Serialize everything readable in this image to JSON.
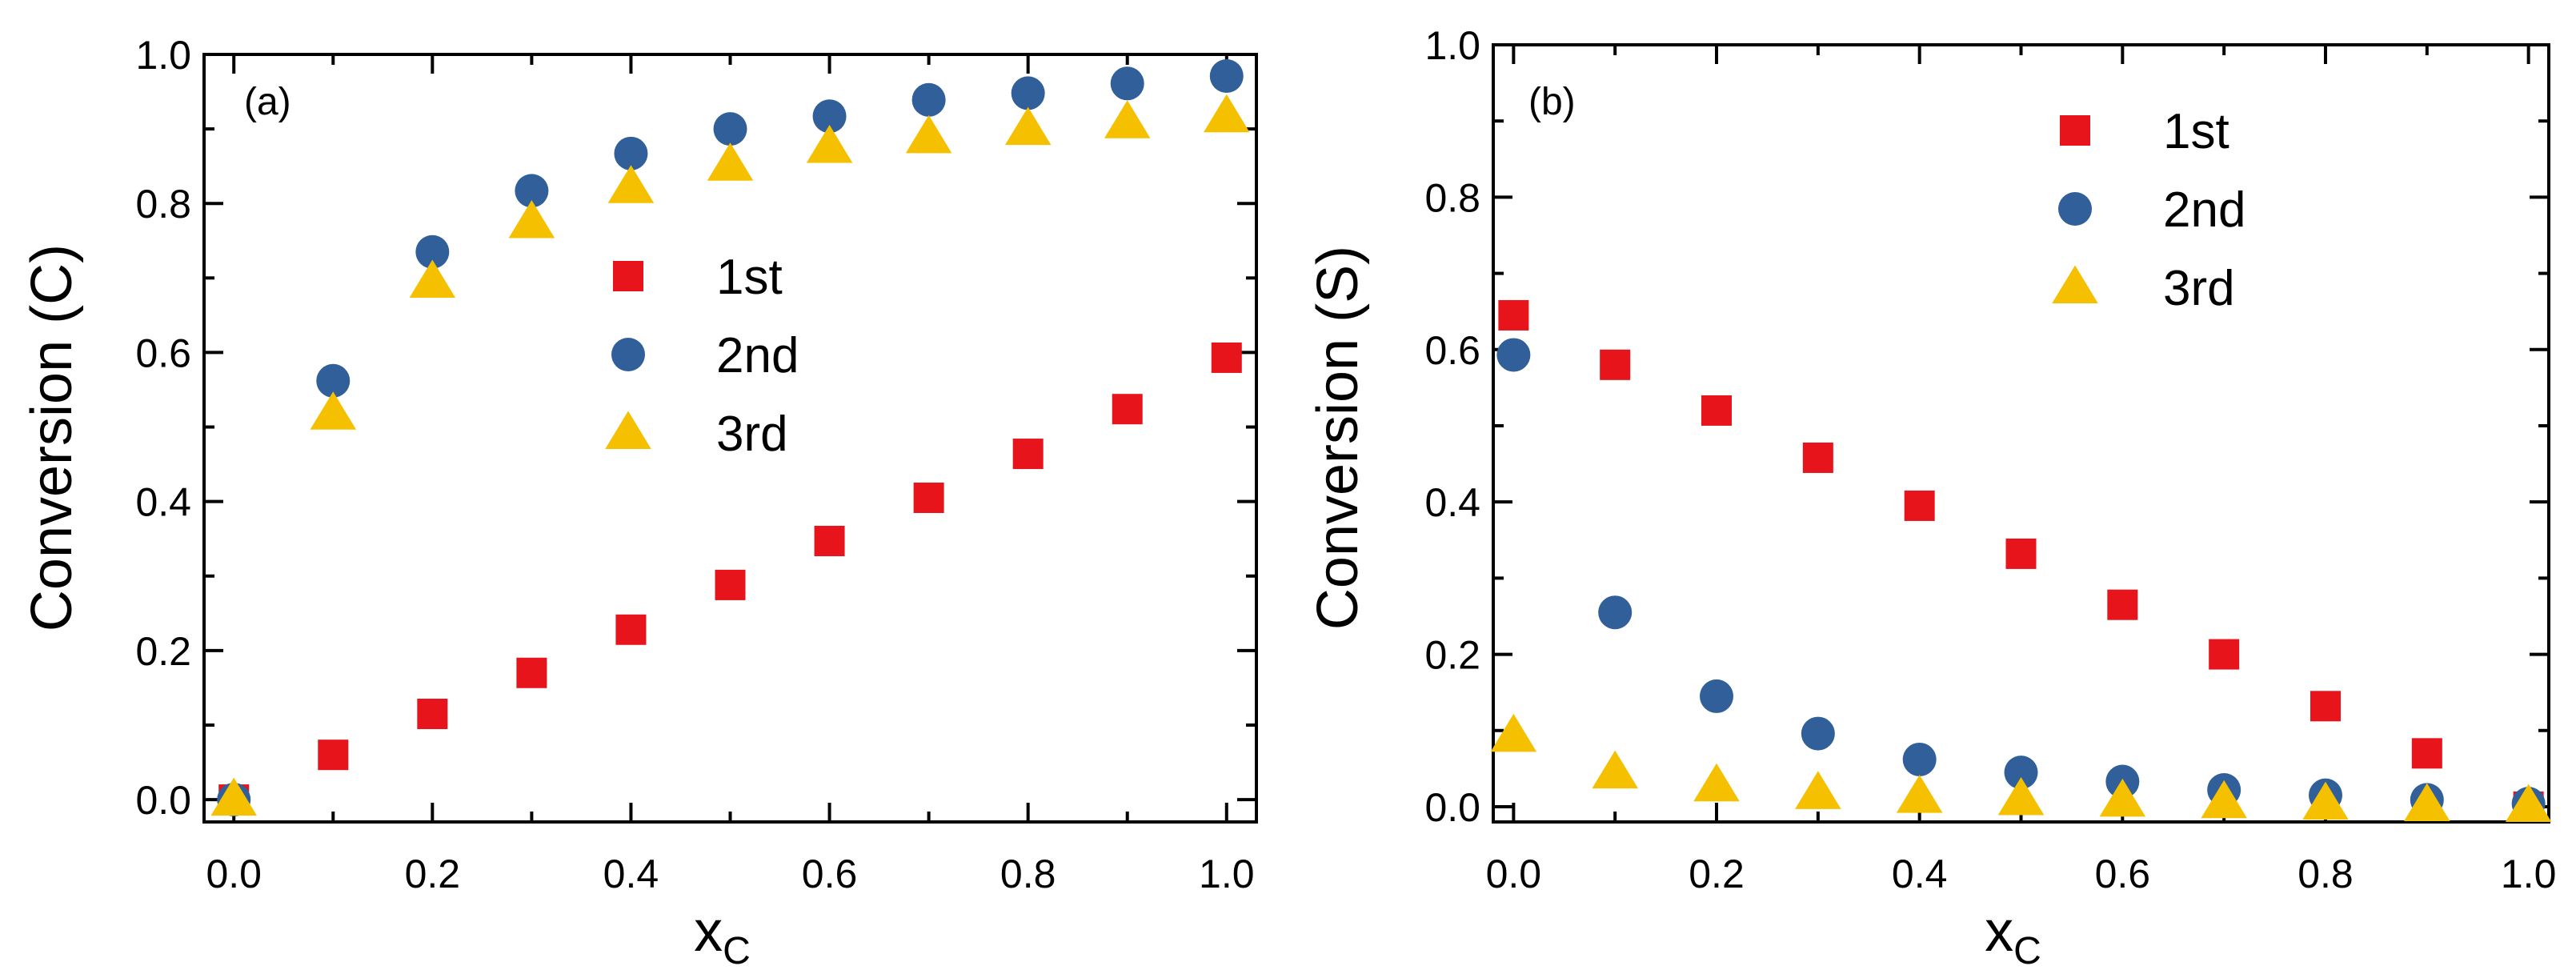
{
  "colors": {
    "first": "#e8141b",
    "second": "#305f9a",
    "third": "#f5c000"
  },
  "chart_data": [
    {
      "type": "scatter",
      "panel_label": "(a)",
      "title": "",
      "xlabel": "x",
      "xlabel_sub": "C",
      "ylabel": "Conversion (C)",
      "xlim": [
        -0.03,
        1.03
      ],
      "ylim": [
        -0.03,
        1.0
      ],
      "xticks": [
        "0.0",
        "0.2",
        "0.4",
        "0.6",
        "0.8",
        "1.0"
      ],
      "yticks": [
        "0.0",
        "0.2",
        "0.4",
        "0.6",
        "0.8",
        "1.0"
      ],
      "legend_position": "center",
      "x": [
        0.0,
        0.1,
        0.2,
        0.3,
        0.4,
        0.5,
        0.6,
        0.7,
        0.8,
        0.9,
        1.0
      ],
      "series": [
        {
          "name": "1st",
          "marker": "square",
          "color_key": "first",
          "values": [
            0.0,
            0.06,
            0.115,
            0.17,
            0.228,
            0.288,
            0.347,
            0.405,
            0.464,
            0.524,
            0.593
          ]
        },
        {
          "name": "2nd",
          "marker": "circle",
          "color_key": "second",
          "values": [
            0.0,
            0.562,
            0.735,
            0.817,
            0.867,
            0.9,
            0.917,
            0.939,
            0.948,
            0.961,
            0.971
          ]
        },
        {
          "name": "3rd",
          "marker": "triangle",
          "color_key": "third",
          "values": [
            0.0,
            0.518,
            0.695,
            0.775,
            0.822,
            0.852,
            0.876,
            0.889,
            0.9,
            0.909,
            0.917
          ]
        }
      ]
    },
    {
      "type": "scatter",
      "panel_label": "(b)",
      "title": "",
      "xlabel": "x",
      "xlabel_sub": "C",
      "ylabel": "Conversion (S)",
      "xlim": [
        -0.02,
        1.02
      ],
      "ylim": [
        -0.02,
        1.0
      ],
      "xticks": [
        "0.0",
        "0.2",
        "0.4",
        "0.6",
        "0.8",
        "1.0"
      ],
      "yticks": [
        "0.0",
        "0.2",
        "0.4",
        "0.6",
        "0.8",
        "1.0"
      ],
      "legend_position": "top-center",
      "x": [
        0.0,
        0.1,
        0.2,
        0.3,
        0.4,
        0.5,
        0.6,
        0.7,
        0.8,
        0.9,
        1.0
      ],
      "series": [
        {
          "name": "1st",
          "marker": "square",
          "color_key": "first",
          "values": [
            0.645,
            0.58,
            0.52,
            0.458,
            0.395,
            0.332,
            0.265,
            0.2,
            0.132,
            0.07,
            0.0
          ]
        },
        {
          "name": "2nd",
          "marker": "circle",
          "color_key": "second",
          "values": [
            0.593,
            0.255,
            0.145,
            0.096,
            0.062,
            0.045,
            0.033,
            0.022,
            0.015,
            0.009,
            0.004
          ]
        },
        {
          "name": "3rd",
          "marker": "triangle",
          "color_key": "third",
          "values": [
            0.093,
            0.045,
            0.028,
            0.018,
            0.013,
            0.01,
            0.008,
            0.006,
            0.004,
            0.002,
            0.001
          ]
        }
      ]
    }
  ]
}
